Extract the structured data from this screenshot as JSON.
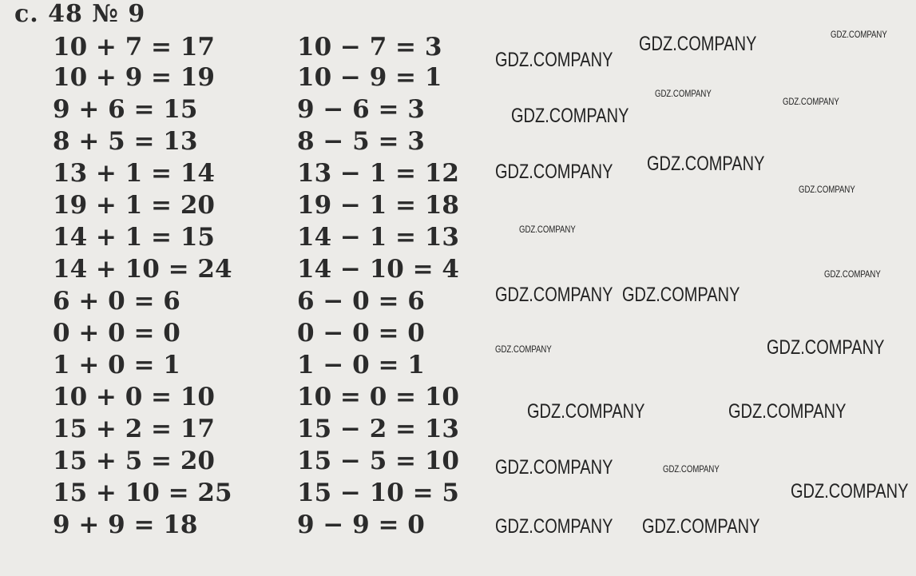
{
  "title": "с. 48 № 9",
  "left_column": [
    "10 + 7 = 17",
    "10 + 9 = 19",
    "9 + 6 = 15",
    "8 + 5 = 13",
    "13 + 1 = 14",
    "19 + 1 = 20",
    "14 + 1 = 15",
    "14 + 10 = 24",
    "6 + 0 = 6",
    "0 + 0 = 0",
    "1 + 0 = 1",
    "10 + 0 = 10",
    "15 + 2 = 17",
    "15 + 5 = 20",
    "15 + 10 = 25",
    "9 + 9 = 18"
  ],
  "right_column": [
    "10 − 7 = 3",
    "10 − 9 = 1",
    "9 − 6 = 3",
    "8 − 5 = 3",
    "13 − 1 = 12",
    "19 − 1 = 18",
    "14 − 1 = 13",
    "14 − 10 = 4",
    "6 − 0 = 6",
    "0 − 0 = 0",
    "1 − 0 = 1",
    "10 = 0 = 10",
    "15 − 2 = 13",
    "15 − 5 = 10",
    "15 − 10 = 5",
    "9 − 9 = 0"
  ],
  "watermark": "GDZ.COMPANY"
}
